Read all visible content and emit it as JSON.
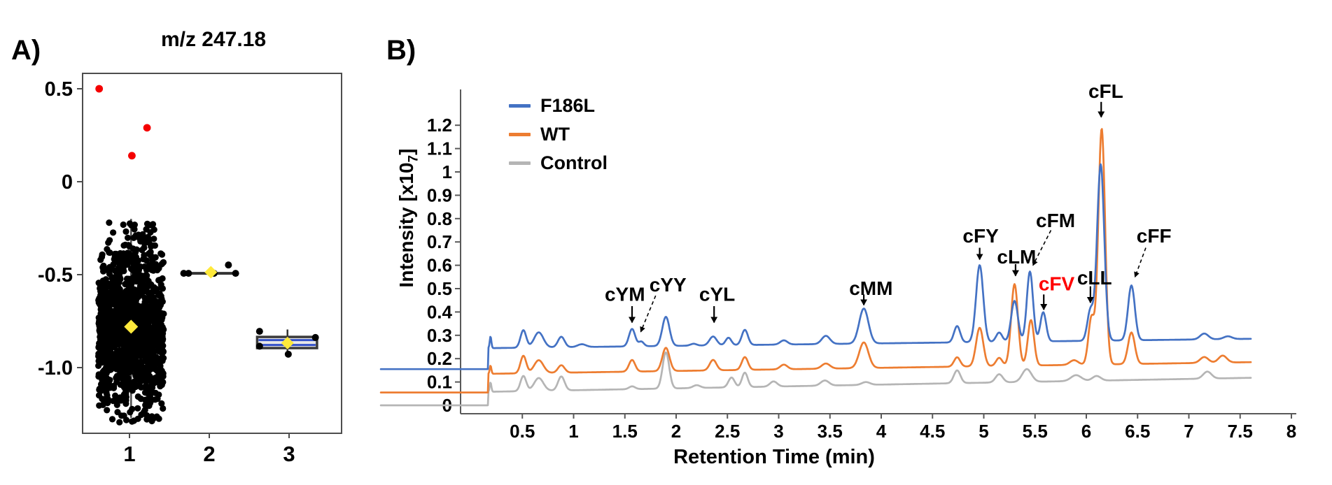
{
  "figure": {
    "background": "#ffffff"
  },
  "chart_data": [
    {
      "id": "panel_a",
      "type": "scatter",
      "panel_label": "A)",
      "title": "m/z 247.18",
      "xlabel": "",
      "ylabel": "",
      "xlim": [
        0.4,
        3.65
      ],
      "ylim": [
        -1.35,
        0.58
      ],
      "x_ticks": [
        1,
        2,
        3
      ],
      "x_tick_labels": [
        "1",
        "2",
        "3"
      ],
      "y_ticks": [
        0.5,
        0,
        -0.5,
        -1.0
      ],
      "y_tick_labels": [
        "0.5",
        "0",
        "-0.5",
        "-1.0"
      ],
      "grid": false,
      "outliers_red": [
        [
          0.62,
          0.5
        ],
        [
          1.22,
          0.29
        ],
        [
          1.03,
          0.14
        ]
      ],
      "group1": {
        "x_center": 1.02,
        "n": 1350,
        "mean": -0.78,
        "sd_core": 0.165,
        "sd_tail": 0.31,
        "core_frac": 0.62,
        "y_min": -1.3,
        "y_max": -0.22,
        "half_width": 0.41,
        "seed": 7,
        "whisker_x": 1.02,
        "whisker": [
          -1.27,
          -0.2
        ],
        "mean_marker": [
          1.02,
          -0.78
        ]
      },
      "group2": {
        "line_y": -0.493,
        "line_x": [
          1.66,
          2.36
        ],
        "points": [
          [
            1.68,
            -0.493
          ],
          [
            1.74,
            -0.493
          ],
          [
            2.06,
            -0.493
          ],
          [
            2.33,
            -0.493
          ],
          [
            2.24,
            -0.448
          ]
        ],
        "mean_marker": [
          2.02,
          -0.487
        ]
      },
      "group3": {
        "box_x": [
          2.6,
          3.35
        ],
        "box_top": -0.835,
        "box_bottom": -0.895,
        "whisker_x": 2.98,
        "whisker": [
          -0.795,
          -0.925
        ],
        "points": [
          [
            2.63,
            -0.805
          ],
          [
            2.63,
            -0.885
          ],
          [
            3.33,
            -0.838
          ],
          [
            2.99,
            -0.928
          ]
        ],
        "mean_marker": [
          2.98,
          -0.868
        ]
      },
      "colors": {
        "points": "#000000",
        "outlier": "#f40000",
        "mean_marker": "#ffe93b",
        "box_stripe": "#3350c8",
        "box_edge": "#3a3a3a",
        "box_fill": "#e8e8e8",
        "frame": "#4d4d4d",
        "whisker": "#4a4a4a",
        "group2_line": "#333333"
      }
    },
    {
      "id": "panel_b",
      "type": "line",
      "panel_label": "B)",
      "xlabel": "Retention Time (min)",
      "ylabel_prefix": "Intensity [x10",
      "ylabel_sub": "7",
      "ylabel_suffix": "]",
      "xlim": [
        -0.9,
        8.15
      ],
      "ylim": [
        0,
        1.35
      ],
      "x_ticks": [
        0.5,
        1,
        1.5,
        2,
        2.5,
        3,
        3.5,
        4,
        4.5,
        5,
        5.5,
        6,
        6.5,
        7,
        7.5,
        8
      ],
      "x_tick_labels": [
        "0.5",
        "1",
        "1.5",
        "2",
        "2.5",
        "3",
        "3.5",
        "4",
        "4.5",
        "5",
        "5.5",
        "6",
        "6.5",
        "7",
        "7.5",
        "8"
      ],
      "y_ticks": [
        0,
        0.1,
        0.2,
        0.3,
        0.4,
        0.5,
        0.6,
        0.7,
        0.8,
        0.9,
        1,
        1.1,
        1.2
      ],
      "y_tick_labels": [
        "0",
        "0.1",
        "0.2",
        "0.3",
        "0.4",
        "0.5",
        "0.6",
        "0.7",
        "0.8",
        "0.9",
        "1",
        "1.1",
        "1.2"
      ],
      "grid": false,
      "legend_position": "upper-left",
      "t_start": -0.88,
      "t_step": 0.17,
      "t_end": 7.61,
      "axis_color": "#595959",
      "series": [
        {
          "name": "Control",
          "color": "#b5b5b5",
          "pre_level": 0.0,
          "base_start": 0.058,
          "base_end": 0.118,
          "peaks": [
            [
              0.19,
              0.04,
              0.008
            ],
            [
              0.51,
              0.065,
              0.028
            ],
            [
              0.66,
              0.055,
              0.045
            ],
            [
              0.88,
              0.06,
              0.032
            ],
            [
              1.57,
              0.012,
              0.03
            ],
            [
              1.9,
              0.155,
              0.032
            ],
            [
              2.2,
              0.012,
              0.035
            ],
            [
              2.54,
              0.042,
              0.03
            ],
            [
              2.67,
              0.062,
              0.028
            ],
            [
              2.95,
              0.022,
              0.035
            ],
            [
              3.45,
              0.022,
              0.04
            ],
            [
              3.85,
              0.012,
              0.04
            ],
            [
              4.74,
              0.055,
              0.032
            ],
            [
              5.15,
              0.035,
              0.035
            ],
            [
              5.42,
              0.055,
              0.045
            ],
            [
              5.9,
              0.025,
              0.05
            ],
            [
              6.1,
              0.02,
              0.04
            ],
            [
              7.18,
              0.03,
              0.04
            ]
          ]
        },
        {
          "name": "WT",
          "color": "#ed7d31",
          "pre_level": 0.055,
          "base_start": 0.135,
          "base_end": 0.185,
          "peaks": [
            [
              0.19,
              0.035,
              0.008
            ],
            [
              0.51,
              0.075,
              0.028
            ],
            [
              0.66,
              0.055,
              0.045
            ],
            [
              0.88,
              0.032,
              0.032
            ],
            [
              1.57,
              0.05,
              0.03
            ],
            [
              1.9,
              0.1,
              0.035
            ],
            [
              2.36,
              0.045,
              0.033
            ],
            [
              2.67,
              0.055,
              0.03
            ],
            [
              3.05,
              0.02,
              0.035
            ],
            [
              3.46,
              0.022,
              0.04
            ],
            [
              3.83,
              0.11,
              0.045
            ],
            [
              4.74,
              0.04,
              0.03
            ],
            [
              4.96,
              0.165,
              0.035
            ],
            [
              5.15,
              0.035,
              0.03
            ],
            [
              5.3,
              0.35,
              0.033
            ],
            [
              5.46,
              0.195,
              0.03
            ],
            [
              5.88,
              0.02,
              0.04
            ],
            [
              6.05,
              0.2,
              0.03
            ],
            [
              6.15,
              1.01,
              0.033
            ],
            [
              6.44,
              0.135,
              0.033
            ],
            [
              7.15,
              0.025,
              0.04
            ],
            [
              7.33,
              0.03,
              0.04
            ]
          ]
        },
        {
          "name": "F186L",
          "color": "#4472c4",
          "pre_level": 0.155,
          "base_start": 0.245,
          "base_end": 0.285,
          "peaks": [
            [
              0.19,
              0.05,
              0.008
            ],
            [
              0.51,
              0.075,
              0.028
            ],
            [
              0.66,
              0.065,
              0.045
            ],
            [
              0.88,
              0.045,
              0.032
            ],
            [
              1.08,
              0.012,
              0.04
            ],
            [
              1.57,
              0.075,
              0.03
            ],
            [
              1.66,
              0.02,
              0.025
            ],
            [
              1.9,
              0.125,
              0.035
            ],
            [
              2.17,
              0.008,
              0.03
            ],
            [
              2.36,
              0.038,
              0.035
            ],
            [
              2.51,
              0.032,
              0.028
            ],
            [
              2.67,
              0.065,
              0.03
            ],
            [
              3.05,
              0.018,
              0.035
            ],
            [
              3.46,
              0.035,
              0.04
            ],
            [
              3.83,
              0.15,
              0.045
            ],
            [
              4.74,
              0.07,
              0.03
            ],
            [
              4.96,
              0.33,
              0.035
            ],
            [
              5.15,
              0.04,
              0.03
            ],
            [
              5.3,
              0.175,
              0.033
            ],
            [
              5.45,
              0.3,
              0.03
            ],
            [
              5.58,
              0.125,
              0.028
            ],
            [
              6.04,
              0.13,
              0.03
            ],
            [
              6.14,
              0.755,
              0.035
            ],
            [
              6.44,
              0.235,
              0.033
            ],
            [
              7.15,
              0.025,
              0.04
            ],
            [
              7.38,
              0.012,
              0.04
            ]
          ]
        }
      ],
      "legend_order": [
        "F186L",
        "WT",
        "Control"
      ],
      "annotations": [
        {
          "text": "cYM",
          "color": "#000000",
          "label_t": 1.5,
          "label_v": 0.475,
          "arrow": "vertical",
          "tip_t": 1.57,
          "from_v": 0.425,
          "tip_v": 0.355
        },
        {
          "text": "cYY",
          "color": "#000000",
          "label_t": 1.92,
          "label_v": 0.515,
          "arrow": "diagonal",
          "from_t": 1.8,
          "from_v": 0.47,
          "tip_t": 1.655,
          "tip_v": 0.315
        },
        {
          "text": "cYL",
          "color": "#000000",
          "label_t": 2.4,
          "label_v": 0.475,
          "arrow": "vertical",
          "tip_t": 2.37,
          "from_v": 0.425,
          "tip_v": 0.355
        },
        {
          "text": "cMM",
          "color": "#000000",
          "label_t": 3.9,
          "label_v": 0.5,
          "arrow": "vertical",
          "tip_t": 3.83,
          "from_v": 0.475,
          "tip_v": 0.43
        },
        {
          "text": "cFY",
          "color": "#000000",
          "label_t": 4.97,
          "label_v": 0.725,
          "arrow": "vertical",
          "tip_t": 4.96,
          "from_v": 0.675,
          "tip_v": 0.625
        },
        {
          "text": "cLM",
          "color": "#000000",
          "label_t": 5.32,
          "label_v": 0.635,
          "arrow": "vertical",
          "tip_t": 5.31,
          "from_v": 0.605,
          "tip_v": 0.555
        },
        {
          "text": "cFM",
          "color": "#000000",
          "label_t": 5.7,
          "label_v": 0.79,
          "arrow": "diagonal",
          "from_t": 5.655,
          "from_v": 0.75,
          "tip_t": 5.48,
          "tip_v": 0.6
        },
        {
          "text": "cFV",
          "color": "#ff0000",
          "label_t": 5.71,
          "label_v": 0.52,
          "arrow": "vertical",
          "tip_t": 5.585,
          "from_v": 0.475,
          "tip_v": 0.41
        },
        {
          "text": "cLL",
          "color": "#000000",
          "label_t": 6.08,
          "label_v": 0.545,
          "arrow": "vertical",
          "tip_t": 6.04,
          "from_v": 0.51,
          "tip_v": 0.44
        },
        {
          "text": "cFL",
          "color": "#000000",
          "label_t": 6.19,
          "label_v": 1.345,
          "arrow": "vertical",
          "tip_t": 6.145,
          "from_v": 1.3,
          "tip_v": 1.235
        },
        {
          "text": "cFF",
          "color": "#000000",
          "label_t": 6.66,
          "label_v": 0.725,
          "arrow": "diagonal",
          "from_t": 6.58,
          "from_v": 0.675,
          "tip_t": 6.475,
          "tip_v": 0.55
        }
      ]
    }
  ]
}
